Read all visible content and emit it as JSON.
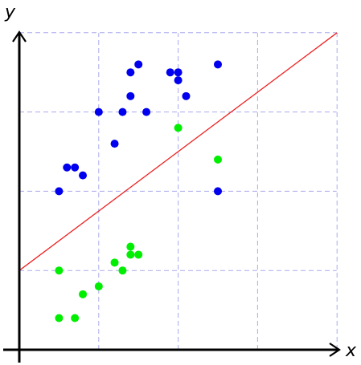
{
  "chart_data": {
    "type": "scatter",
    "title": "",
    "xlabel": "x",
    "ylabel": "y",
    "xlim": [
      -0.2,
      4.0
    ],
    "ylim": [
      -0.2,
      4.0
    ],
    "x_gridlines": [
      1,
      2,
      3,
      4
    ],
    "y_gridlines": [
      1,
      2,
      3,
      4
    ],
    "grid": true,
    "grid_style": "dashed",
    "legend": "none",
    "series": [
      {
        "color": "#0000ee",
        "points": [
          [
            0.5,
            2.0
          ],
          [
            0.6,
            2.3
          ],
          [
            0.7,
            2.3
          ],
          [
            0.8,
            2.2
          ],
          [
            1.0,
            3.0
          ],
          [
            1.2,
            2.6
          ],
          [
            1.3,
            3.0
          ],
          [
            1.4,
            3.2
          ],
          [
            1.4,
            3.5
          ],
          [
            1.5,
            3.6
          ],
          [
            1.6,
            3.0
          ],
          [
            1.9,
            3.5
          ],
          [
            2.0,
            3.5
          ],
          [
            2.0,
            3.4
          ],
          [
            2.1,
            3.2
          ],
          [
            2.5,
            3.6
          ],
          [
            2.5,
            2.0
          ]
        ]
      },
      {
        "color": "#00ee00",
        "points": [
          [
            0.5,
            0.4
          ],
          [
            0.5,
            1.0
          ],
          [
            0.7,
            0.4
          ],
          [
            0.8,
            0.7
          ],
          [
            1.0,
            0.8
          ],
          [
            1.2,
            1.1
          ],
          [
            1.3,
            1.0
          ],
          [
            1.4,
            1.3
          ],
          [
            1.4,
            1.2
          ],
          [
            1.5,
            1.2
          ],
          [
            2.0,
            2.8
          ],
          [
            2.5,
            2.4
          ]
        ]
      }
    ],
    "line": {
      "color": "#ee2222",
      "x": [
        0,
        4
      ],
      "y": [
        1.0,
        4.0
      ]
    }
  }
}
